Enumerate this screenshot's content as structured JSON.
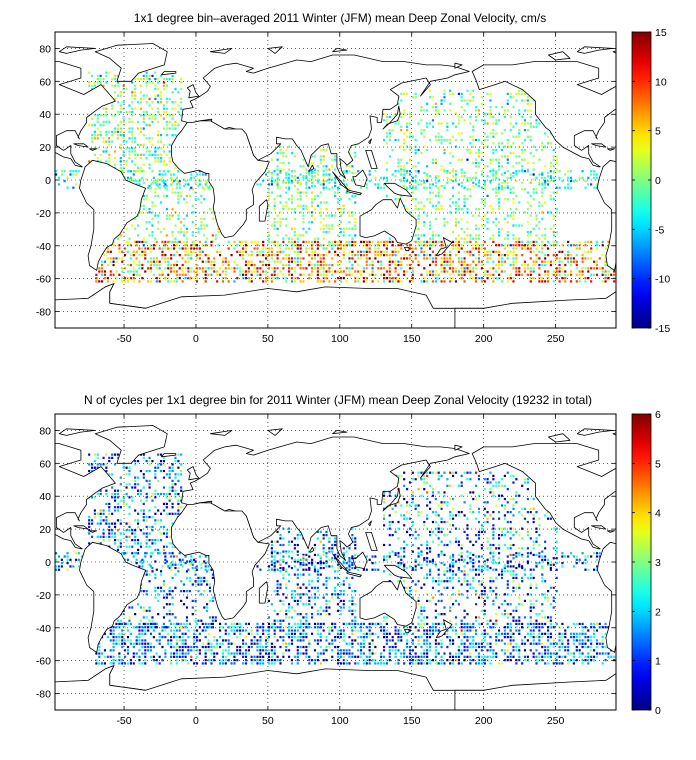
{
  "chart_data": [
    {
      "type": "heatmap",
      "title": "1x1 degree bin–averaged 2011 Winter (JFM) mean Deep Zonal Velocity, cm/s",
      "xlabel": "",
      "ylabel": "",
      "xlim": [
        -98,
        292
      ],
      "ylim": [
        -90,
        90
      ],
      "xticks": [
        -50,
        0,
        50,
        100,
        150,
        200,
        250
      ],
      "yticks": [
        80,
        60,
        40,
        20,
        0,
        -20,
        -40,
        -60,
        -80
      ],
      "grid": true,
      "colorbar": {
        "min": -15,
        "max": 15,
        "ticks": [
          15,
          10,
          5,
          0,
          -5,
          -10,
          -15
        ],
        "colormap": "jet",
        "label": "cm/s"
      },
      "basemap": "world coastlines",
      "regions": [
        {
          "lon": [
            -75,
            -10
          ],
          "lat": [
            5,
            65
          ],
          "density": 0.4,
          "mean": 0,
          "spread": 3.5
        },
        {
          "lon": [
            -55,
            15
          ],
          "lat": [
            -40,
            0
          ],
          "density": 0.3,
          "mean": 0,
          "spread": 3
        },
        {
          "lon": [
            50,
            110
          ],
          "lat": [
            -40,
            20
          ],
          "density": 0.35,
          "mean": 0,
          "spread": 3
        },
        {
          "lon": [
            130,
            250
          ],
          "lat": [
            -40,
            55
          ],
          "density": 0.28,
          "mean": 0,
          "spread": 3
        },
        {
          "lon": [
            -70,
            290
          ],
          "lat": [
            -62,
            -38
          ],
          "density": 0.55,
          "mean": 6,
          "spread": 6
        },
        {
          "lon": [
            -98,
            290
          ],
          "lat": [
            -5,
            5
          ],
          "density": 0.35,
          "mean": -3,
          "spread": 3
        }
      ]
    },
    {
      "type": "heatmap",
      "title": "N of cycles per 1x1 degree bin for 2011 Winter (JFM) mean Deep Zonal Velocity (19232 in total)",
      "xlabel": "",
      "ylabel": "",
      "xlim": [
        -98,
        292
      ],
      "ylim": [
        -90,
        90
      ],
      "xticks": [
        -50,
        0,
        50,
        100,
        150,
        200,
        250
      ],
      "yticks": [
        80,
        60,
        40,
        20,
        0,
        -20,
        -40,
        -60,
        -80
      ],
      "grid": true,
      "colorbar": {
        "min": 0,
        "max": 6,
        "ticks": [
          6,
          5,
          4,
          3,
          2,
          1,
          0
        ],
        "colormap": "jet"
      },
      "basemap": "world coastlines",
      "total_cycles": 19232,
      "regions": [
        {
          "lon": [
            -75,
            -10
          ],
          "lat": [
            5,
            65
          ],
          "density": 0.4,
          "mean": 1.6,
          "spread": 1.2
        },
        {
          "lon": [
            -55,
            15
          ],
          "lat": [
            -40,
            0
          ],
          "density": 0.3,
          "mean": 1.5,
          "spread": 1.0
        },
        {
          "lon": [
            50,
            110
          ],
          "lat": [
            -40,
            20
          ],
          "density": 0.35,
          "mean": 1.5,
          "spread": 1.0
        },
        {
          "lon": [
            130,
            250
          ],
          "lat": [
            -40,
            55
          ],
          "density": 0.28,
          "mean": 1.7,
          "spread": 1.3
        },
        {
          "lon": [
            -70,
            290
          ],
          "lat": [
            -62,
            -38
          ],
          "density": 0.55,
          "mean": 1.4,
          "spread": 1.0
        },
        {
          "lon": [
            -98,
            290
          ],
          "lat": [
            -5,
            5
          ],
          "density": 0.35,
          "mean": 1.5,
          "spread": 1.0
        }
      ]
    }
  ]
}
